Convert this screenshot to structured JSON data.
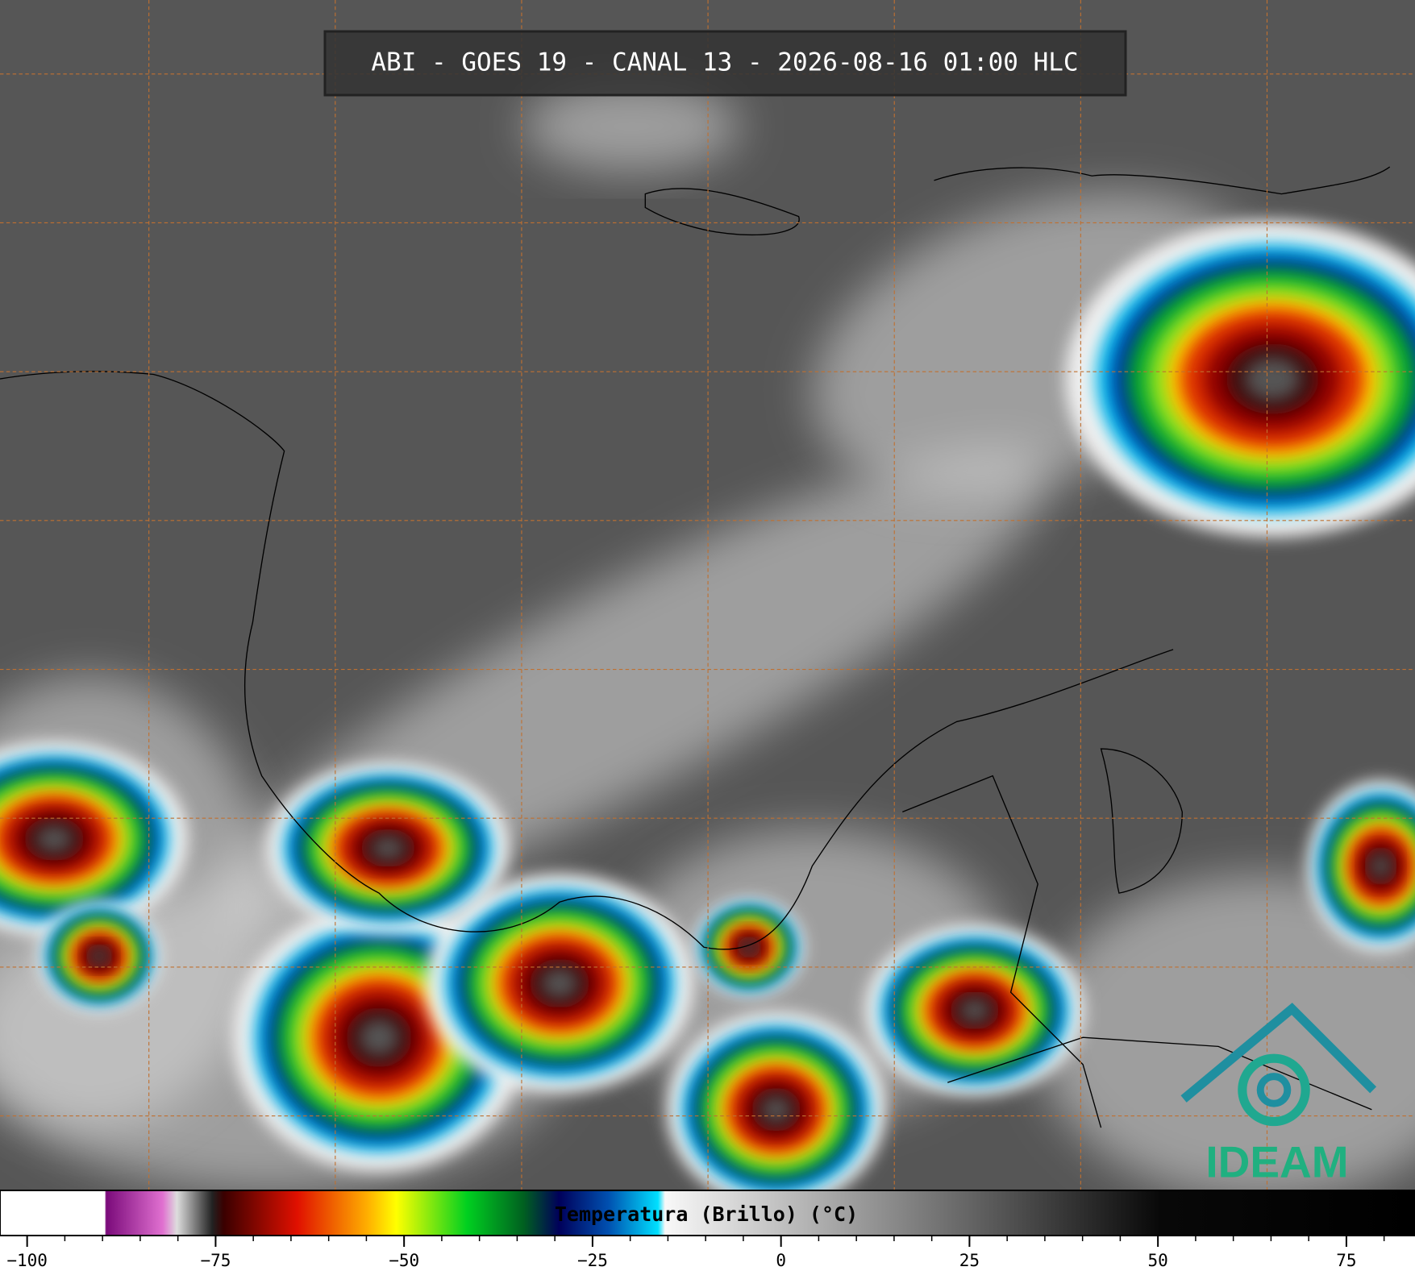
{
  "title": "ABI - GOES 19 - CANAL 13 - 2026-08-16 01:00 HLC",
  "colorbar": {
    "label": "Temperatura (Brillo) (°C)",
    "range": [
      -103.6,
      84.1
    ],
    "ticks": [
      {
        "value": -100,
        "label": "−100"
      },
      {
        "value": -75,
        "label": "−75"
      },
      {
        "value": -50,
        "label": "−50"
      },
      {
        "value": -25,
        "label": "−25"
      },
      0,
      25,
      50,
      75
    ]
  },
  "logo": "IDEAM"
}
